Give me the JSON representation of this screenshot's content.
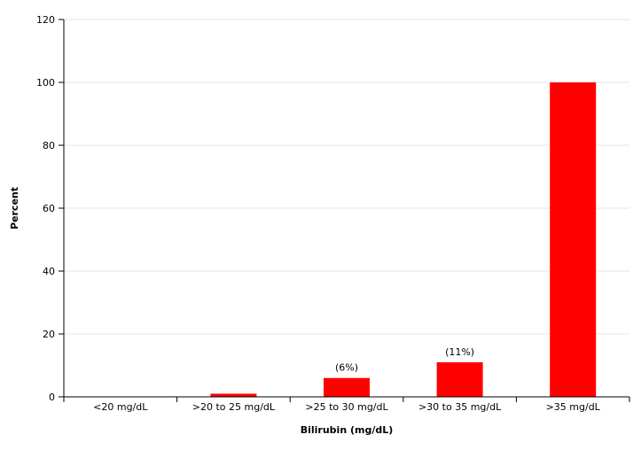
{
  "chart_data": {
    "type": "bar",
    "categories": [
      "<20 mg/dL",
      ">20 to 25 mg/dL",
      ">25 to 30 mg/dL",
      ">30 to 35 mg/dL",
      ">35 mg/dL"
    ],
    "values": [
      0,
      1,
      6,
      11,
      100
    ],
    "data_labels": [
      "",
      "",
      "(6%)",
      "(11%)",
      ""
    ],
    "xlabel": "Bilirubin (mg/dL)",
    "ylabel": "Percent",
    "ylim": [
      0,
      120
    ],
    "yticks": [
      0,
      20,
      40,
      60,
      80,
      100,
      120
    ],
    "grid": true,
    "bar_color": "#ff0000",
    "grid_color": "#e6e6e6"
  }
}
